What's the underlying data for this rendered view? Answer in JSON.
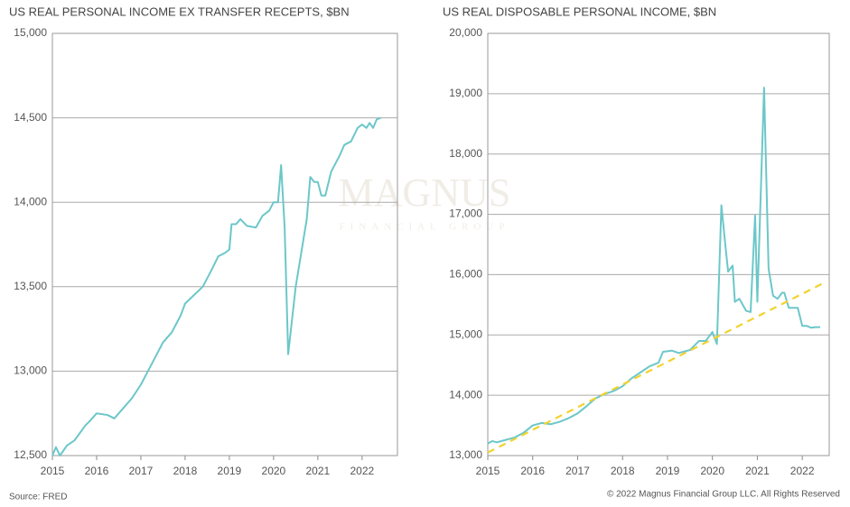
{
  "chart_data": [
    {
      "type": "line",
      "title": "US REAL PERSONAL INCOME EX TRANSFER RECEPTS, $BN",
      "xlim": [
        2015,
        2022.8
      ],
      "xticks": [
        2015,
        2016,
        2017,
        2018,
        2019,
        2020,
        2021,
        2022
      ],
      "ylim": [
        12500,
        15000
      ],
      "yticks": [
        {
          "value": 12500,
          "label": "12,500"
        },
        {
          "value": 13000,
          "label": "13,000"
        },
        {
          "value": 13500,
          "label": "13,500"
        },
        {
          "value": 14000,
          "label": "14,000"
        },
        {
          "value": 14500,
          "label": "14,500"
        },
        {
          "value": 15000,
          "label": "15,000"
        }
      ],
      "grid": true,
      "series": [
        {
          "color": "#6cc7c9",
          "style": "solid",
          "x": [
            2015.0,
            2015.08,
            2015.17,
            2015.33,
            2015.5,
            2015.75,
            2015.83,
            2016.0,
            2016.25,
            2016.4,
            2016.6,
            2016.8,
            2017.0,
            2017.2,
            2017.4,
            2017.5,
            2017.7,
            2017.9,
            2018.0,
            2018.2,
            2018.4,
            2018.6,
            2018.75,
            2018.9,
            2019.0,
            2019.05,
            2019.15,
            2019.25,
            2019.4,
            2019.6,
            2019.75,
            2019.9,
            2020.0,
            2020.1,
            2020.17,
            2020.25,
            2020.33,
            2020.5,
            2020.75,
            2020.83,
            2020.92,
            2021.0,
            2021.08,
            2021.17,
            2021.3,
            2021.5,
            2021.6,
            2021.75,
            2021.9,
            2022.0,
            2022.1,
            2022.17,
            2022.25,
            2022.33,
            2022.42
          ],
          "values": [
            12500,
            12550,
            12500,
            12560,
            12590,
            12680,
            12700,
            12750,
            12740,
            12720,
            12780,
            12840,
            12920,
            13020,
            13120,
            13170,
            13230,
            13330,
            13400,
            13450,
            13500,
            13600,
            13680,
            13700,
            13720,
            13870,
            13870,
            13900,
            13860,
            13850,
            13920,
            13950,
            14000,
            14000,
            14220,
            13850,
            13100,
            13500,
            13900,
            14150,
            14120,
            14120,
            14040,
            14040,
            14180,
            14280,
            14340,
            14360,
            14440,
            14460,
            14440,
            14470,
            14440,
            14490,
            14500
          ]
        }
      ]
    },
    {
      "type": "line",
      "title": "US REAL DISPOSABLE PERSONAL INCOME, $BN",
      "xlim": [
        2015,
        2022.6
      ],
      "xticks": [
        2015,
        2016,
        2017,
        2018,
        2019,
        2020,
        2021,
        2022
      ],
      "ylim": [
        13000,
        20000
      ],
      "yticks": [
        {
          "value": 13000,
          "label": "13,000"
        },
        {
          "value": 14000,
          "label": "14,000"
        },
        {
          "value": 15000,
          "label": "15,000"
        },
        {
          "value": 16000,
          "label": "16,000"
        },
        {
          "value": 17000,
          "label": "17,000"
        },
        {
          "value": 18000,
          "label": "18,000"
        },
        {
          "value": 19000,
          "label": "19,000"
        },
        {
          "value": 20000,
          "label": "20,000"
        }
      ],
      "grid": true,
      "series": [
        {
          "color": "#6cc7c9",
          "style": "solid",
          "x": [
            2015.0,
            2015.1,
            2015.2,
            2015.4,
            2015.6,
            2015.8,
            2016.0,
            2016.2,
            2016.4,
            2016.6,
            2016.8,
            2017.0,
            2017.2,
            2017.4,
            2017.6,
            2017.8,
            2018.0,
            2018.2,
            2018.4,
            2018.6,
            2018.8,
            2018.9,
            2019.1,
            2019.25,
            2019.5,
            2019.7,
            2019.85,
            2020.0,
            2020.1,
            2020.2,
            2020.3,
            2020.35,
            2020.45,
            2020.5,
            2020.6,
            2020.75,
            2020.85,
            2020.95,
            2021.0,
            2021.15,
            2021.25,
            2021.35,
            2021.45,
            2021.55,
            2021.6,
            2021.7,
            2021.9,
            2022.0,
            2022.1,
            2022.2,
            2022.3,
            2022.4
          ],
          "values": [
            13200,
            13240,
            13220,
            13260,
            13300,
            13380,
            13500,
            13540,
            13520,
            13560,
            13620,
            13700,
            13820,
            13950,
            14020,
            14070,
            14150,
            14280,
            14380,
            14480,
            14540,
            14720,
            14740,
            14700,
            14750,
            14900,
            14900,
            15050,
            14850,
            17150,
            16400,
            16050,
            16150,
            15550,
            15600,
            15400,
            15380,
            16980,
            15550,
            19100,
            16100,
            15650,
            15600,
            15700,
            15700,
            15450,
            15450,
            15150,
            15150,
            15120,
            15130,
            15130
          ]
        },
        {
          "color": "#f2d22e",
          "style": "dashed",
          "x": [
            2015,
            2022.5
          ],
          "values": [
            13050,
            15870
          ]
        }
      ]
    }
  ],
  "source": "Source: FRED",
  "copyright": "© 2022 Magnus Financial Group LLC. All Rights Reserved",
  "watermark": [
    "MAGNUS",
    "FINANCIAL GROUP"
  ]
}
